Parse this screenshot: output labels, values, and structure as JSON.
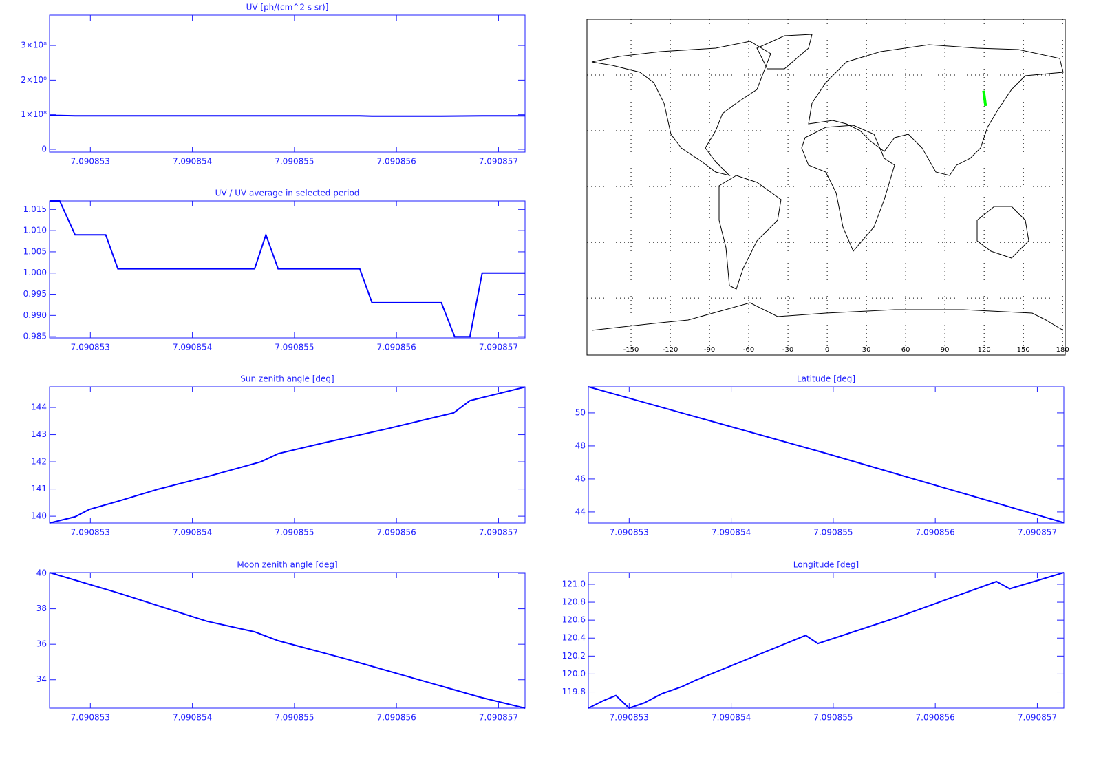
{
  "chart_data": [
    {
      "type": "line",
      "title": "UV [ph/(cm^2 s sr)]",
      "color": "#0000ff",
      "x": [
        7.0908526,
        7.0908527,
        7.09085285,
        7.09085327,
        7.09085564,
        7.09085576,
        7.09085644,
        7.09085684,
        7.09085726
      ],
      "values": [
        98000000,
        98000000,
        97000000,
        97000000,
        97000000,
        96000000,
        96000000,
        97000000,
        97000000
      ],
      "xlim": [
        7.0908526,
        7.09085726
      ],
      "ylim": [
        -8000000,
        387600000
      ],
      "xticks": [
        7.090853,
        7.090854,
        7.090855,
        7.090856,
        7.090857
      ],
      "yticks": [
        0,
        {
          "value": 100000000,
          "label": "1×10⁸"
        },
        {
          "value": 200000000,
          "label": "2×10⁸"
        },
        {
          "value": 300000000,
          "label": "3×10⁸"
        }
      ]
    },
    {
      "type": "line",
      "title": "UV / UV average in selected period",
      "color": "#0000ff",
      "x": [
        7.0908526,
        7.0908527,
        7.09085285,
        7.09085315,
        7.09085327,
        7.09085461,
        7.09085472,
        7.09085484,
        7.09085564,
        7.09085576,
        7.09085644,
        7.09085657,
        7.09085672,
        7.09085684,
        7.09085726
      ],
      "values": [
        1.017,
        1.017,
        1.009,
        1.009,
        1.001,
        1.001,
        1.009,
        1.001,
        1.001,
        0.993,
        0.993,
        0.985,
        0.985,
        1.0,
        1.0
      ],
      "xlim": [
        7.0908526,
        7.09085726
      ],
      "ylim": [
        0.9847,
        1.017
      ],
      "xticks": [
        7.090853,
        7.090854,
        7.090855,
        7.090856,
        7.090857
      ],
      "yticks": [
        {
          "value": 0.985,
          "label": "0.985"
        },
        {
          "value": 0.99,
          "label": "0.990"
        },
        {
          "value": 0.995,
          "label": "0.995"
        },
        {
          "value": 1.0,
          "label": "1.000"
        },
        {
          "value": 1.005,
          "label": "1.005"
        },
        {
          "value": 1.01,
          "label": "1.010"
        },
        {
          "value": 1.015,
          "label": "1.015"
        }
      ]
    },
    {
      "type": "map",
      "xlim": [
        -183.7,
        182
      ],
      "ylim": [
        -90.7,
        90
      ],
      "grid": true,
      "xticks": [
        -150,
        -120,
        -90,
        -60,
        -30,
        0,
        30,
        60,
        90,
        120,
        150,
        180
      ],
      "yticks": [
        -60,
        -30,
        0,
        30,
        60
      ],
      "track": {
        "color": "#00ff00",
        "lon": [
          119.62,
          121.13
        ],
        "lat": [
          51.58,
          43.33
        ]
      }
    },
    {
      "type": "line",
      "title": "Sun zenith angle [deg]",
      "color": "#0000ff",
      "x": [
        7.0908526,
        7.09085285,
        7.09085299,
        7.09085327,
        7.09085367,
        7.09085414,
        7.09085467,
        7.09085484,
        7.09085529,
        7.09085589,
        7.09085656,
        7.09085672,
        7.09085726
      ],
      "values": [
        139.75,
        139.98,
        140.25,
        140.55,
        141.0,
        141.45,
        142.0,
        142.3,
        142.7,
        143.2,
        143.8,
        144.25,
        144.75
      ],
      "xlim": [
        7.0908526,
        7.09085726
      ],
      "ylim": [
        139.75,
        144.76
      ],
      "xticks": [
        7.090853,
        7.090854,
        7.090855,
        7.090856,
        7.090857
      ],
      "yticks": [
        140,
        141,
        142,
        143,
        144
      ]
    },
    {
      "type": "line",
      "title": "Latitude [deg]",
      "color": "#0000ff",
      "x": [
        7.0908526,
        7.0908549,
        7.09085726
      ],
      "values": [
        51.58,
        47.6,
        43.35
      ],
      "xlim": [
        7.0908526,
        7.09085726
      ],
      "ylim": [
        43.33,
        51.58
      ],
      "xticks": [
        7.090853,
        7.090854,
        7.090855,
        7.090856,
        7.090857
      ],
      "yticks": [
        44,
        46,
        48,
        50
      ]
    },
    {
      "type": "line",
      "title": "Moon zenith angle [deg]",
      "color": "#0000ff",
      "x": [
        7.0908526,
        7.09085327,
        7.09085414,
        7.09085461,
        7.09085484,
        7.09085549,
        7.09085616,
        7.09085683,
        7.09085726
      ],
      "values": [
        40.04,
        38.9,
        37.3,
        36.7,
        36.2,
        35.2,
        34.1,
        33.0,
        32.4
      ],
      "xlim": [
        7.0908526,
        7.09085726
      ],
      "ylim": [
        32.4,
        40.04
      ],
      "xticks": [
        7.090853,
        7.090854,
        7.090855,
        7.090856,
        7.090857
      ],
      "yticks": [
        34,
        36,
        38,
        40
      ]
    },
    {
      "type": "line",
      "title": "Longitude [deg]",
      "color": "#0000ff",
      "x": [
        7.0908526,
        7.09085274,
        7.09085287,
        7.090853,
        7.09085315,
        7.09085332,
        7.09085352,
        7.09085365,
        7.09085473,
        7.09085485,
        7.0908556,
        7.0908566,
        7.09085673,
        7.09085726
      ],
      "values": [
        119.62,
        119.7,
        119.76,
        119.62,
        119.68,
        119.78,
        119.86,
        119.93,
        120.43,
        120.34,
        120.62,
        121.03,
        120.95,
        121.13
      ],
      "xlim": [
        7.0908526,
        7.09085726
      ],
      "ylim": [
        119.62,
        121.13
      ],
      "xticks": [
        7.090853,
        7.090854,
        7.090855,
        7.090856,
        7.090857
      ],
      "yticks": [
        {
          "value": 119.8,
          "label": "119.8"
        },
        {
          "value": 120,
          "label": "120.0"
        },
        {
          "value": 120.2,
          "label": "120.2"
        },
        {
          "value": 120.4,
          "label": "120.4"
        },
        {
          "value": 120.6,
          "label": "120.6"
        },
        {
          "value": 120.8,
          "label": "120.8"
        },
        {
          "value": 121,
          "label": "121.0"
        }
      ]
    }
  ]
}
